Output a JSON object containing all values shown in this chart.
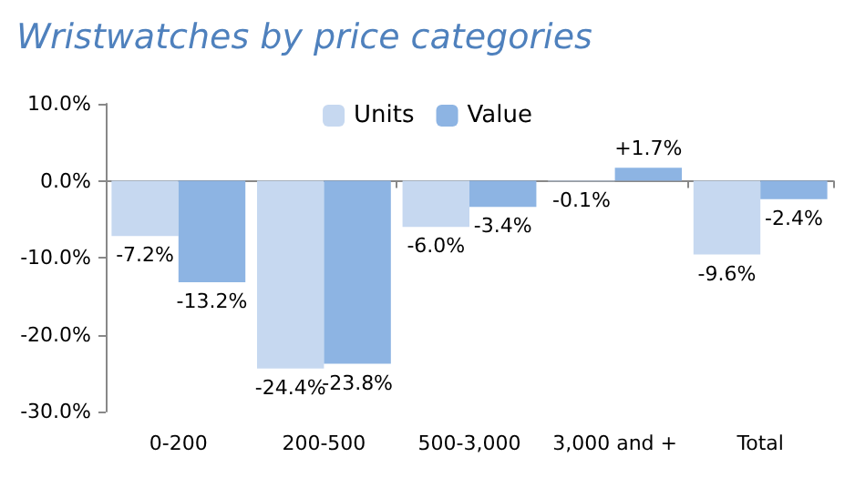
{
  "chart_data": {
    "type": "bar",
    "title": "Wristwatches by price categories",
    "categories": [
      "0-200",
      "200-500",
      "500-3,000",
      "3,000 and +",
      "Total"
    ],
    "series": [
      {
        "name": "Units",
        "color": "#c6d8f0",
        "values": [
          -7.2,
          -24.4,
          -6.0,
          -0.1,
          -9.6
        ],
        "value_labels": [
          "-7.2%",
          "-24.4%",
          "-6.0%",
          "-0.1%",
          "-9.6%"
        ]
      },
      {
        "name": "Value",
        "color": "#8db4e3",
        "values": [
          -13.2,
          -23.8,
          -3.4,
          1.7,
          -2.4
        ],
        "value_labels": [
          "-13.2%",
          "-23.8%",
          "-3.4%",
          "+1.7%",
          "-2.4%"
        ]
      }
    ],
    "ylim": [
      -30,
      10
    ],
    "yticks": [
      {
        "value": -30,
        "label": "-30.0%"
      },
      {
        "value": -20,
        "label": "-20.0%"
      },
      {
        "value": -10,
        "label": "-10.0%"
      },
      {
        "value": 0,
        "label": "0.0%"
      },
      {
        "value": 10,
        "label": "10.0%"
      }
    ],
    "legend": "top"
  }
}
